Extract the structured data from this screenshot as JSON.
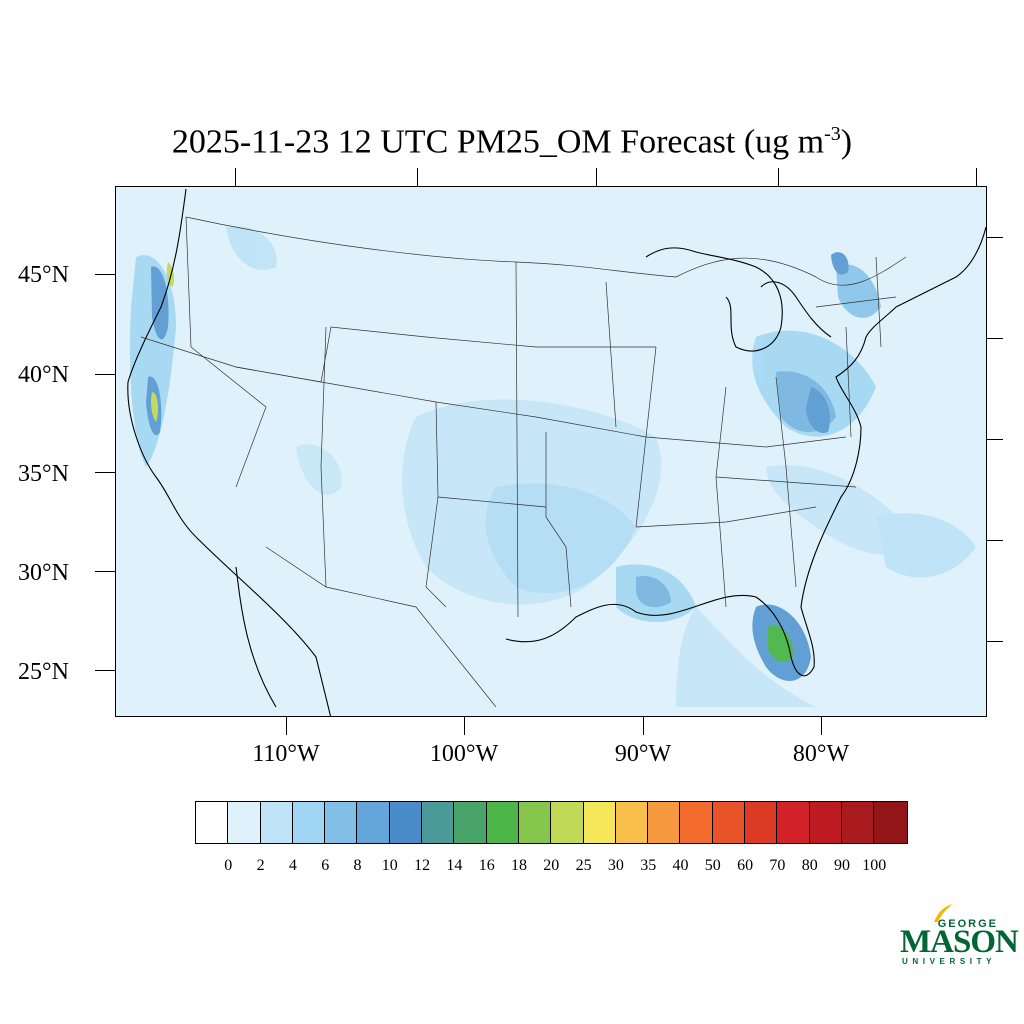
{
  "title": {
    "text": "2025-11-23 12 UTC PM25_OM Forecast (ug m",
    "superscript": "-3",
    "closing": ")"
  },
  "map": {
    "region": "Contiguous United States",
    "variable": "PM25_OM",
    "lat_labels": [
      "45°N",
      "40°N",
      "35°N",
      "30°N",
      "25°N"
    ],
    "lon_labels": [
      "110°W",
      "100°W",
      "90°W",
      "80°W"
    ],
    "background_color": "#dff1fa"
  },
  "colorbar": {
    "colors": [
      "#ffffff",
      "#dff1fa",
      "#bfe4f7",
      "#a0d6f3",
      "#82bfe6",
      "#64a5da",
      "#4a8bc9",
      "#4a9a9a",
      "#48a468",
      "#4bb548",
      "#86c64c",
      "#c2d957",
      "#f6e65a",
      "#f9bf4b",
      "#f7993e",
      "#f36c2d",
      "#e95328",
      "#dd3a25",
      "#d32128",
      "#be1a22",
      "#a91a1f",
      "#931518"
    ],
    "labels": [
      "0",
      "2",
      "4",
      "6",
      "8",
      "10",
      "12",
      "14",
      "16",
      "18",
      "20",
      "25",
      "30",
      "35",
      "40",
      "50",
      "60",
      "70",
      "80",
      "90",
      "100"
    ]
  },
  "logo": {
    "line1": "GEORGE",
    "line2": "MASON",
    "line3": "UNIVERSITY",
    "brand_color": "#006633",
    "accent_color": "#f5b700"
  }
}
